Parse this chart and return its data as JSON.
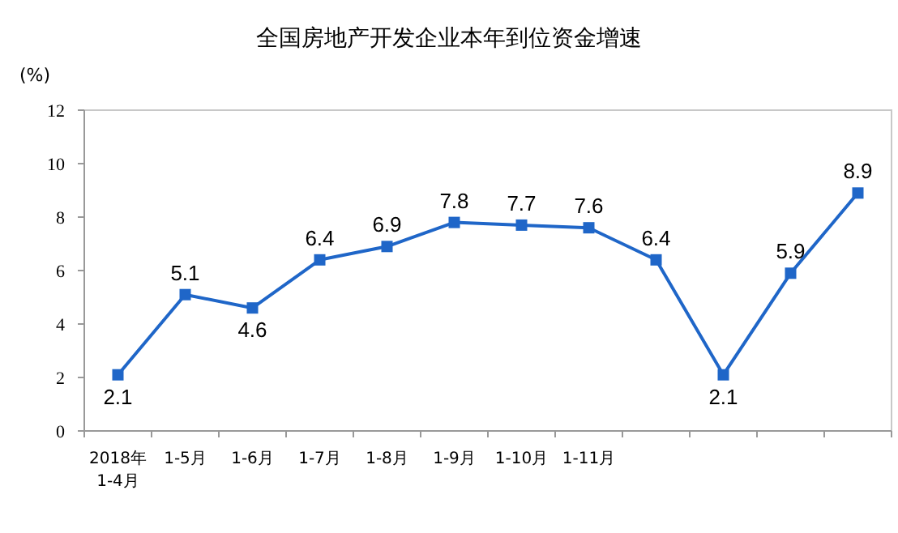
{
  "chart_data": {
    "type": "line",
    "title": "全国房地产开发企业本年到位资金增速",
    "ylabel": "(%)",
    "categories": [
      "2018年\n1-4月",
      "1-5月",
      "1-6月",
      "1-7月",
      "1-8月",
      "1-9月",
      "1-10月",
      "1-11月",
      null,
      null,
      null,
      null
    ],
    "series": [
      {
        "color": "#1f66c8",
        "values": [
          2.1,
          5.1,
          4.6,
          6.4,
          6.9,
          7.8,
          7.7,
          7.6,
          6.4,
          2.1,
          5.9,
          8.9
        ]
      }
    ],
    "ylim": [
      0,
      12
    ],
    "yticks": [
      0,
      2,
      4,
      6,
      8,
      10,
      12
    ],
    "grid": false,
    "marker": "square",
    "data_labels": true
  }
}
